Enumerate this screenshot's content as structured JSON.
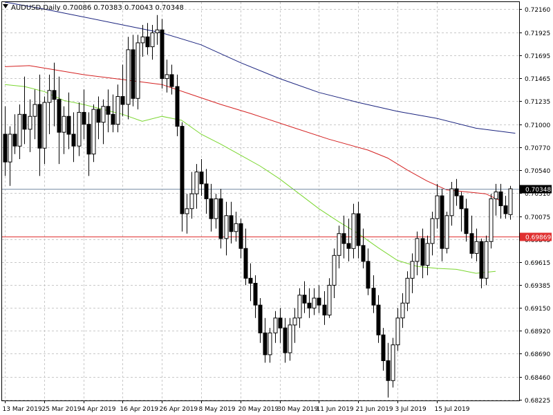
{
  "header": {
    "symbol_line": "AUDUSD,Daily  0.70086 0.70383 0.70043 0.70348"
  },
  "colors": {
    "background": "#ffffff",
    "grid": "#c8c8c8",
    "candle_stroke": "#000000",
    "bull_fill": "#ffffff",
    "bear_fill": "#000000",
    "ma_fast": "#7ad62f",
    "ma_mid": "#d42020",
    "ma_slow": "#1a237e",
    "bid_line": "#7a8fa6",
    "level_line": "#e03030",
    "bid_label_bg": "#000000",
    "level_label_bg": "#e03030"
  },
  "chart_data": {
    "type": "candlestick",
    "title": "AUDUSD,Daily",
    "symbol": "AUDUSD",
    "timeframe": "Daily",
    "ohlc_header": {
      "open": 0.70086,
      "high": 0.70383,
      "low": 0.70043,
      "close": 0.70348
    },
    "grid": true,
    "ylim": [
      0.6822,
      0.7223
    ],
    "y_ticks": [
      "0.72160",
      "0.71925",
      "0.71695",
      "0.71465",
      "0.71235",
      "0.71000",
      "0.70770",
      "0.70540",
      "0.70310",
      "0.70075",
      "0.69845",
      "0.69615",
      "0.69385",
      "0.69150",
      "0.68920",
      "0.68690",
      "0.68460",
      "0.68225"
    ],
    "x_ticks": [
      "13 Mar 2019",
      "25 Mar 2019",
      "4 Apr 2019",
      "16 Apr 2019",
      "26 Apr 2019",
      "8 May 2019",
      "20 May 2019",
      "30 May 2019",
      "11 Jun 2019",
      "21 Jun 2019",
      "3 Jul 2019",
      "15 Jul 2019"
    ],
    "current_price": 0.70348,
    "current_price_label": "0.70348",
    "horizontal_level": 0.69869,
    "horizontal_level_label": "0.69869",
    "candles": [
      [
        0.709,
        0.7118,
        0.7048,
        0.7062
      ],
      [
        0.7062,
        0.7098,
        0.7038,
        0.709
      ],
      [
        0.709,
        0.711,
        0.707,
        0.7078
      ],
      [
        0.7078,
        0.712,
        0.7065,
        0.711
      ],
      [
        0.711,
        0.7148,
        0.708,
        0.7095
      ],
      [
        0.7095,
        0.7125,
        0.7072,
        0.7108
      ],
      [
        0.7108,
        0.7135,
        0.7085,
        0.712
      ],
      [
        0.712,
        0.715,
        0.7048,
        0.7076
      ],
      [
        0.7076,
        0.7128,
        0.706,
        0.7122
      ],
      [
        0.7122,
        0.715,
        0.709,
        0.7134
      ],
      [
        0.7134,
        0.7162,
        0.7098,
        0.7125
      ],
      [
        0.7125,
        0.7148,
        0.706,
        0.7092
      ],
      [
        0.7092,
        0.7118,
        0.707,
        0.7108
      ],
      [
        0.7108,
        0.7132,
        0.7075,
        0.709
      ],
      [
        0.709,
        0.7112,
        0.7062,
        0.7078
      ],
      [
        0.7078,
        0.7122,
        0.7068,
        0.7112
      ],
      [
        0.7112,
        0.7135,
        0.7085,
        0.71
      ],
      [
        0.71,
        0.7112,
        0.7048,
        0.707
      ],
      [
        0.707,
        0.712,
        0.7062,
        0.7115
      ],
      [
        0.7115,
        0.7128,
        0.7085,
        0.7102
      ],
      [
        0.7102,
        0.7125,
        0.708,
        0.7118
      ],
      [
        0.7118,
        0.7135,
        0.7092,
        0.711
      ],
      [
        0.711,
        0.713,
        0.7092,
        0.71
      ],
      [
        0.71,
        0.714,
        0.7092,
        0.7128
      ],
      [
        0.7128,
        0.716,
        0.7108,
        0.712
      ],
      [
        0.712,
        0.7188,
        0.7105,
        0.7175
      ],
      [
        0.7175,
        0.719,
        0.7118,
        0.7126
      ],
      [
        0.7126,
        0.719,
        0.7115,
        0.7182
      ],
      [
        0.7182,
        0.72,
        0.7168,
        0.7188
      ],
      [
        0.7188,
        0.7202,
        0.717,
        0.7178
      ],
      [
        0.7178,
        0.72,
        0.7165,
        0.7192
      ],
      [
        0.7192,
        0.721,
        0.718,
        0.7195
      ],
      [
        0.7195,
        0.7206,
        0.7136,
        0.7146
      ],
      [
        0.7146,
        0.7165,
        0.7132,
        0.715
      ],
      [
        0.715,
        0.716,
        0.713,
        0.7138
      ],
      [
        0.7138,
        0.715,
        0.7088,
        0.7098
      ],
      [
        0.7098,
        0.7102,
        0.6992,
        0.701
      ],
      [
        0.701,
        0.703,
        0.699,
        0.7015
      ],
      [
        0.7015,
        0.7052,
        0.7005,
        0.703
      ],
      [
        0.703,
        0.706,
        0.7015,
        0.7052
      ],
      [
        0.7052,
        0.7065,
        0.7028,
        0.704
      ],
      [
        0.704,
        0.7055,
        0.701,
        0.7025
      ],
      [
        0.7025,
        0.704,
        0.6992,
        0.7005
      ],
      [
        0.7005,
        0.703,
        0.6995,
        0.7025
      ],
      [
        0.7025,
        0.7035,
        0.6975,
        0.6985
      ],
      [
        0.6985,
        0.7022,
        0.6968,
        0.7008
      ],
      [
        0.7008,
        0.7022,
        0.698,
        0.6992
      ],
      [
        0.6992,
        0.7012,
        0.6982,
        0.7
      ],
      [
        0.7,
        0.7005,
        0.6965,
        0.6975
      ],
      [
        0.6975,
        0.6995,
        0.6938,
        0.6945
      ],
      [
        0.6945,
        0.696,
        0.6922,
        0.694
      ],
      [
        0.694,
        0.6948,
        0.6905,
        0.6918
      ],
      [
        0.6918,
        0.6925,
        0.688,
        0.689
      ],
      [
        0.689,
        0.6905,
        0.686,
        0.6868
      ],
      [
        0.6868,
        0.6895,
        0.686,
        0.689
      ],
      [
        0.689,
        0.6912,
        0.688,
        0.6905
      ],
      [
        0.6905,
        0.6915,
        0.688,
        0.6895
      ],
      [
        0.6895,
        0.6905,
        0.686,
        0.687
      ],
      [
        0.687,
        0.6905,
        0.6862,
        0.6898
      ],
      [
        0.6898,
        0.6915,
        0.688,
        0.6905
      ],
      [
        0.6905,
        0.6935,
        0.6895,
        0.6928
      ],
      [
        0.6928,
        0.6942,
        0.691,
        0.692
      ],
      [
        0.692,
        0.6935,
        0.6905,
        0.6915
      ],
      [
        0.6915,
        0.6935,
        0.6908,
        0.6925
      ],
      [
        0.6925,
        0.6938,
        0.691,
        0.6918
      ],
      [
        0.6918,
        0.6932,
        0.6898,
        0.6908
      ],
      [
        0.6908,
        0.6945,
        0.6905,
        0.6938
      ],
      [
        0.6938,
        0.6975,
        0.6925,
        0.6968
      ],
      [
        0.6968,
        0.6998,
        0.6955,
        0.699
      ],
      [
        0.699,
        0.7008,
        0.6965,
        0.698
      ],
      [
        0.698,
        0.7005,
        0.6962,
        0.6975
      ],
      [
        0.6975,
        0.702,
        0.6965,
        0.701
      ],
      [
        0.701,
        0.7022,
        0.6965,
        0.6978
      ],
      [
        0.6978,
        0.6995,
        0.6955,
        0.6962
      ],
      [
        0.6962,
        0.6975,
        0.6928,
        0.6935
      ],
      [
        0.6935,
        0.6948,
        0.691,
        0.6918
      ],
      [
        0.6918,
        0.6928,
        0.688,
        0.6888
      ],
      [
        0.6888,
        0.6895,
        0.6852,
        0.6862
      ],
      [
        0.6862,
        0.688,
        0.6825,
        0.6842
      ],
      [
        0.6842,
        0.6885,
        0.6835,
        0.6878
      ],
      [
        0.6878,
        0.6915,
        0.6872,
        0.6905
      ],
      [
        0.6905,
        0.693,
        0.6895,
        0.692
      ],
      [
        0.692,
        0.6952,
        0.6912,
        0.6945
      ],
      [
        0.6945,
        0.697,
        0.693,
        0.6962
      ],
      [
        0.6962,
        0.6992,
        0.6948,
        0.6985
      ],
      [
        0.6985,
        0.6995,
        0.6945,
        0.6958
      ],
      [
        0.6958,
        0.6988,
        0.6948,
        0.698
      ],
      [
        0.698,
        0.7012,
        0.6968,
        0.7005
      ],
      [
        0.7005,
        0.704,
        0.6995,
        0.7028
      ],
      [
        0.7028,
        0.7035,
        0.6962,
        0.6975
      ],
      [
        0.6975,
        0.7012,
        0.697,
        0.7008
      ],
      [
        0.7008,
        0.7042,
        0.6998,
        0.7035
      ],
      [
        0.7035,
        0.7045,
        0.7018,
        0.7028
      ],
      [
        0.7028,
        0.7032,
        0.6992,
        0.7015
      ],
      [
        0.7015,
        0.7025,
        0.6982,
        0.699
      ],
      [
        0.699,
        0.7008,
        0.6965,
        0.697
      ],
      [
        0.697,
        0.6995,
        0.6962,
        0.6982
      ],
      [
        0.6982,
        0.6985,
        0.6935,
        0.6945
      ],
      [
        0.6945,
        0.6988,
        0.6938,
        0.6982
      ],
      [
        0.6982,
        0.703,
        0.6975,
        0.7025
      ],
      [
        0.7025,
        0.704,
        0.7008,
        0.7032
      ],
      [
        0.7032,
        0.704,
        0.7005,
        0.7018
      ],
      [
        0.7018,
        0.7028,
        0.7005,
        0.701
      ],
      [
        0.7009,
        0.7038,
        0.7004,
        0.7035
      ]
    ],
    "series": [
      {
        "values": [
          [
            0,
            0.714
          ],
          [
            4,
            0.7138
          ],
          [
            8,
            0.7133
          ],
          [
            12,
            0.7124
          ],
          [
            16,
            0.712
          ],
          [
            20,
            0.7115
          ],
          [
            24,
            0.711
          ],
          [
            28,
            0.7103
          ],
          [
            32,
            0.7108
          ],
          [
            36,
            0.7104
          ],
          [
            40,
            0.709
          ],
          [
            44,
            0.708
          ],
          [
            48,
            0.7069
          ],
          [
            52,
            0.7058
          ],
          [
            56,
            0.7045
          ],
          [
            60,
            0.703
          ],
          [
            64,
            0.7015
          ],
          [
            68,
            0.7002
          ],
          [
            72,
            0.699
          ],
          [
            76,
            0.6976
          ],
          [
            80,
            0.6963
          ],
          [
            84,
            0.6957
          ],
          [
            88,
            0.6955
          ],
          [
            92,
            0.6954
          ],
          [
            96,
            0.695
          ],
          [
            100,
            0.6952
          ]
        ]
      },
      {
        "values": [
          [
            0,
            0.7158
          ],
          [
            5,
            0.7159
          ],
          [
            10,
            0.7155
          ],
          [
            16,
            0.715
          ],
          [
            24,
            0.7145
          ],
          [
            32,
            0.714
          ],
          [
            38,
            0.713
          ],
          [
            44,
            0.712
          ],
          [
            50,
            0.7111
          ],
          [
            58,
            0.7098
          ],
          [
            66,
            0.7085
          ],
          [
            74,
            0.7074
          ],
          [
            78,
            0.7066
          ],
          [
            82,
            0.7054
          ],
          [
            86,
            0.7043
          ],
          [
            90,
            0.7034
          ],
          [
            94,
            0.7032
          ],
          [
            98,
            0.703
          ],
          [
            101,
            0.7023
          ]
        ]
      },
      {
        "values": [
          [
            0,
            0.7223
          ],
          [
            8,
            0.7216
          ],
          [
            16,
            0.7208
          ],
          [
            24,
            0.72
          ],
          [
            32,
            0.7192
          ],
          [
            40,
            0.718
          ],
          [
            48,
            0.7162
          ],
          [
            56,
            0.7146
          ],
          [
            64,
            0.7132
          ],
          [
            72,
            0.7122
          ],
          [
            80,
            0.7113
          ],
          [
            88,
            0.7106
          ],
          [
            96,
            0.7096
          ],
          [
            104,
            0.7091
          ]
        ]
      }
    ]
  }
}
